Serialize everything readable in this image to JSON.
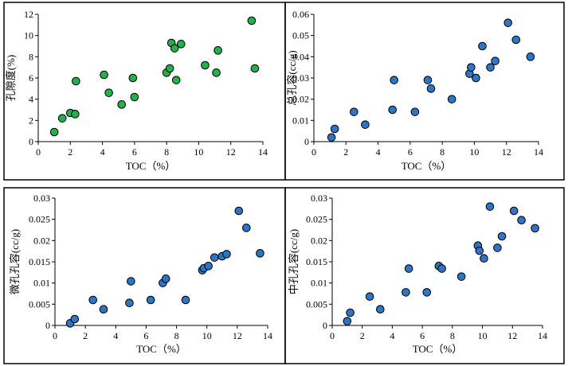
{
  "colors": {
    "green_fill": "#22b14c",
    "blue_fill": "#2e75c6",
    "marker_stroke": "#000000"
  },
  "chart_data": [
    {
      "id": "porosity",
      "type": "scatter",
      "title": "",
      "xlabel": "TOC（%）",
      "ylabel": "孔隙度(%)",
      "xlim": [
        0,
        14
      ],
      "ylim": [
        0,
        12
      ],
      "xticks": [
        "0",
        "2",
        "4",
        "6",
        "8",
        "10",
        "12",
        "14"
      ],
      "yticks": [
        "0",
        "2",
        "4",
        "6",
        "8",
        "10",
        "12"
      ],
      "series": [
        {
          "name": "porosity",
          "color": "#22b14c",
          "x": [
            1.0,
            1.5,
            2.0,
            2.3,
            2.35,
            4.1,
            4.4,
            5.2,
            5.9,
            6.0,
            8.0,
            8.2,
            8.3,
            8.5,
            8.6,
            8.9,
            10.4,
            11.1,
            11.2,
            13.3,
            13.5
          ],
          "y": [
            0.9,
            2.2,
            2.7,
            2.6,
            5.7,
            6.3,
            4.6,
            3.5,
            6.0,
            4.2,
            6.5,
            6.9,
            9.3,
            8.8,
            5.8,
            9.2,
            7.2,
            6.5,
            8.6,
            11.4,
            6.9
          ]
        }
      ]
    },
    {
      "id": "total-pore-volume",
      "type": "scatter",
      "title": "",
      "xlabel": "TOC（%）",
      "ylabel": "总孔容(cc/g)",
      "xlim": [
        0,
        14
      ],
      "ylim": [
        0,
        0.06
      ],
      "xticks": [
        "0",
        "2",
        "4",
        "6",
        "8",
        "10",
        "12",
        "14"
      ],
      "yticks": [
        "0",
        "0.01",
        "0.02",
        "0.03",
        "0.04",
        "0.05",
        "0.06"
      ],
      "series": [
        {
          "name": "total",
          "color": "#2e75c6",
          "x": [
            1.1,
            1.3,
            2.5,
            3.2,
            4.9,
            5.0,
            6.3,
            7.1,
            7.3,
            8.6,
            9.7,
            9.8,
            10.1,
            10.5,
            11.0,
            11.3,
            12.1,
            12.6,
            13.5
          ],
          "y": [
            0.002,
            0.006,
            0.014,
            0.008,
            0.015,
            0.029,
            0.014,
            0.029,
            0.025,
            0.02,
            0.032,
            0.035,
            0.03,
            0.045,
            0.035,
            0.038,
            0.056,
            0.048,
            0.04
          ]
        }
      ]
    },
    {
      "id": "micropore-volume",
      "type": "scatter",
      "title": "",
      "xlabel": "TOC（%）",
      "ylabel": "微孔孔容(cc/g)",
      "xlim": [
        0,
        14
      ],
      "ylim": [
        0,
        0.03
      ],
      "xticks": [
        "0",
        "2",
        "4",
        "6",
        "8",
        "10",
        "12",
        "14"
      ],
      "yticks": [
        "0",
        "0.005",
        "0.01",
        "0.015",
        "0.02",
        "0.025",
        "0.03"
      ],
      "series": [
        {
          "name": "micro",
          "color": "#2e75c6",
          "x": [
            1.0,
            1.3,
            2.5,
            3.2,
            4.9,
            5.0,
            6.3,
            7.1,
            7.3,
            8.6,
            9.7,
            9.8,
            10.1,
            10.5,
            11.0,
            11.3,
            12.1,
            12.6,
            13.5
          ],
          "y": [
            0.0005,
            0.0015,
            0.006,
            0.0038,
            0.0053,
            0.0104,
            0.006,
            0.01,
            0.011,
            0.006,
            0.013,
            0.0135,
            0.014,
            0.016,
            0.0163,
            0.0168,
            0.027,
            0.023,
            0.017
          ]
        }
      ]
    },
    {
      "id": "mesopore-volume",
      "type": "scatter",
      "title": "",
      "xlabel": "TOC（%）",
      "ylabel": "中孔孔容(cc/g)",
      "xlim": [
        0,
        14
      ],
      "ylim": [
        0,
        0.03
      ],
      "xticks": [
        "0",
        "2",
        "4",
        "6",
        "8",
        "10",
        "12",
        "14"
      ],
      "yticks": [
        "0",
        "0.005",
        "0.01",
        "0.015",
        "0.02",
        "0.025",
        "0.03"
      ],
      "series": [
        {
          "name": "meso",
          "color": "#2e75c6",
          "x": [
            1.0,
            1.2,
            2.5,
            3.2,
            4.9,
            5.1,
            6.3,
            7.1,
            7.3,
            8.6,
            9.7,
            9.8,
            10.1,
            10.5,
            11.0,
            11.3,
            12.1,
            12.6,
            13.5
          ],
          "y": [
            0.001,
            0.003,
            0.0068,
            0.0038,
            0.0078,
            0.0134,
            0.0078,
            0.014,
            0.0134,
            0.0115,
            0.0188,
            0.0176,
            0.0158,
            0.028,
            0.0183,
            0.021,
            0.027,
            0.0248,
            0.0229
          ]
        }
      ]
    }
  ]
}
